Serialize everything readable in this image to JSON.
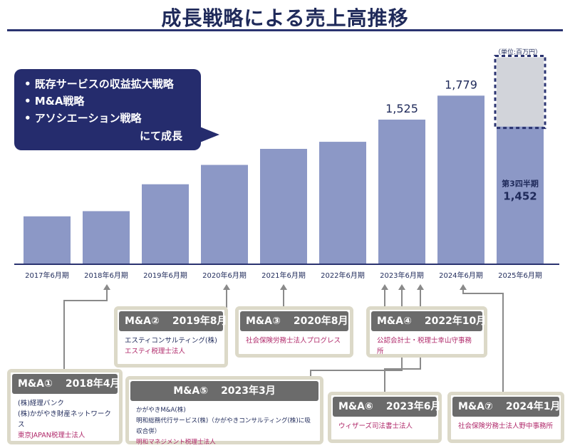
{
  "page_title": "成長戦略による売上高推移",
  "unit_label": "（単位:百万円）",
  "callout": {
    "bullets": [
      "• 既存サービスの収益拡大戦略",
      "• M&A戦略",
      "• アソシエーション戦略"
    ],
    "ending": "にて成長"
  },
  "chart_data": {
    "type": "bar",
    "categories": [
      "2017年6月期",
      "2018年6月期",
      "2019年6月期",
      "2020年6月期",
      "2021年6月期",
      "2022年6月期",
      "2023年6月期",
      "2024年6月期",
      "2025年6月期"
    ],
    "values": [
      500,
      555,
      840,
      1045,
      1215,
      1290,
      1525,
      1779,
      1452
    ],
    "data_labels": [
      "",
      "",
      "",
      "",
      "",
      "",
      "1,525",
      "1,779",
      ""
    ],
    "forecast_top": 2185,
    "final_bar_label": "第3四半期",
    "final_bar_value_label": "1,452",
    "ylim": [
      0,
      2400
    ],
    "colors": {
      "bar": "#8c98c6",
      "forecast": "#d2d4da",
      "dashed": "#2a3370",
      "axis": "#2a3370",
      "label": "#1f2a5a"
    }
  },
  "ma_deals": [
    {
      "title": "M&A①",
      "date": "2018年4月",
      "lines": [
        {
          "text": "(株)経理バンク",
          "color": "navy"
        },
        {
          "text": "(株)かがやき財産ネットワークス",
          "color": "navy"
        },
        {
          "text": "東京JAPAN税理士法人",
          "color": "pink"
        }
      ]
    },
    {
      "title": "M&A②",
      "date": "2019年8月",
      "lines": [
        {
          "text": "エスティコンサルティング(株)",
          "color": "navy"
        },
        {
          "text": "エスティ税理士法人",
          "color": "pink"
        }
      ]
    },
    {
      "title": "M&A③",
      "date": "2020年8月",
      "lines": [
        {
          "text": "社会保険労務士法人プログレス",
          "color": "pink"
        }
      ]
    },
    {
      "title": "M&A④",
      "date": "2022年10月",
      "lines": [
        {
          "text": "公認会計士・税理士幸山守事務所",
          "color": "pink"
        }
      ]
    },
    {
      "title": "M&A⑤",
      "date": "2023年3月",
      "lines": [
        {
          "text": "かがやきM&A(株)",
          "color": "navy"
        },
        {
          "text": "明和総務代行サービス(株)（かがやきコンサルティング(株)に吸収合併）",
          "color": "navy"
        },
        {
          "text": "明和マネジメント税理士法人",
          "color": "pink"
        }
      ]
    },
    {
      "title": "M&A⑥",
      "date": "2023年6月",
      "lines": [
        {
          "text": "ウィザーズ司法書士法人",
          "color": "pink"
        }
      ]
    },
    {
      "title": "M&A⑦",
      "date": "2024年1月",
      "lines": [
        {
          "text": "社会保険労務士法人野中事務所",
          "color": "pink"
        }
      ]
    }
  ]
}
